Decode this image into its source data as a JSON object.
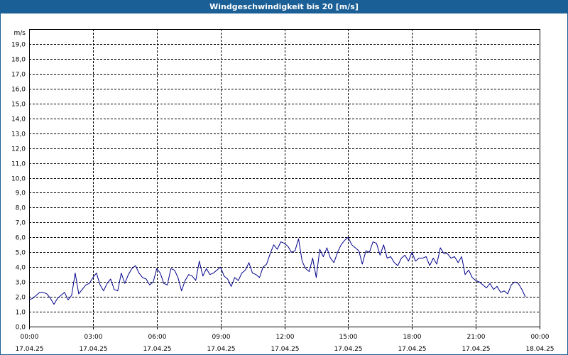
{
  "title": "Windgeschwindigkeit bis 20 [m/s]",
  "colors": {
    "title_bg": "#1a5f96",
    "title_fg": "#ffffff",
    "line": "#00008b",
    "grid": "#000000"
  },
  "chart_data": {
    "type": "line",
    "title": "Windgeschwindigkeit bis 20 [m/s]",
    "ylabel": "m/s",
    "xlabel": "",
    "ylim": [
      0,
      20
    ],
    "yticks": [
      "0,0",
      "1,0",
      "2,0",
      "3,0",
      "4,0",
      "5,0",
      "6,0",
      "7,0",
      "8,0",
      "9,0",
      "10,0",
      "11,0",
      "12,0",
      "13,0",
      "14,0",
      "15,0",
      "16,0",
      "17,0",
      "18,0",
      "19,0"
    ],
    "xlim_hours": [
      0,
      24
    ],
    "xticks": [
      {
        "time": "00:00",
        "date": "17.04.25"
      },
      {
        "time": "03:00",
        "date": "17.04.25"
      },
      {
        "time": "06:00",
        "date": "17.04.25"
      },
      {
        "time": "09:00",
        "date": "17.04.25"
      },
      {
        "time": "12:00",
        "date": "17.04.25"
      },
      {
        "time": "15:00",
        "date": "17.04.25"
      },
      {
        "time": "18:00",
        "date": "17.04.25"
      },
      {
        "time": "21:00",
        "date": "17.04.25"
      },
      {
        "time": "00:00",
        "date": "18.04.25"
      }
    ],
    "grid": true,
    "series": [
      {
        "name": "Windgeschwindigkeit",
        "interval_minutes": 10,
        "values": [
          1.8,
          1.9,
          2.1,
          2.3,
          2.3,
          2.2,
          1.9,
          1.5,
          1.9,
          2.1,
          2.3,
          1.8,
          2.1,
          3.6,
          2.2,
          2.5,
          2.8,
          2.9,
          3.3,
          3.6,
          2.8,
          2.4,
          2.9,
          3.2,
          2.5,
          2.4,
          3.6,
          2.9,
          3.5,
          3.9,
          4.1,
          3.6,
          3.3,
          3.2,
          2.8,
          3.0,
          3.9,
          3.6,
          2.9,
          2.8,
          3.9,
          3.8,
          3.3,
          2.4,
          3.1,
          3.5,
          3.4,
          3.1,
          4.4,
          3.4,
          3.9,
          3.5,
          3.6,
          3.8,
          4.0,
          3.4,
          3.2,
          2.7,
          3.3,
          3.1,
          3.6,
          3.8,
          4.3,
          3.6,
          3.5,
          3.3,
          4.0,
          4.2,
          4.9,
          5.5,
          5.2,
          5.7,
          5.6,
          5.4,
          5.0,
          5.1,
          5.9,
          4.4,
          3.9,
          3.7,
          4.6,
          3.3,
          5.2,
          4.7,
          5.3,
          4.6,
          4.3,
          5.0,
          5.5,
          5.8,
          6.0,
          5.5,
          5.3,
          5.1,
          4.2,
          5.1,
          5.0,
          5.7,
          5.6,
          4.8,
          5.5,
          4.6,
          4.7,
          4.3,
          4.1,
          4.6,
          4.8,
          4.4,
          5.0,
          4.4,
          4.6,
          4.6,
          4.7,
          4.1,
          4.6,
          4.2,
          5.3,
          4.9,
          4.9,
          4.6,
          4.7,
          4.3,
          4.7,
          3.5,
          3.8,
          3.3,
          3.1,
          3.0,
          2.8,
          2.6,
          2.9,
          2.5,
          2.7,
          2.3,
          2.4,
          2.2,
          2.8,
          3.0,
          2.9,
          2.5,
          2.0
        ]
      }
    ]
  }
}
